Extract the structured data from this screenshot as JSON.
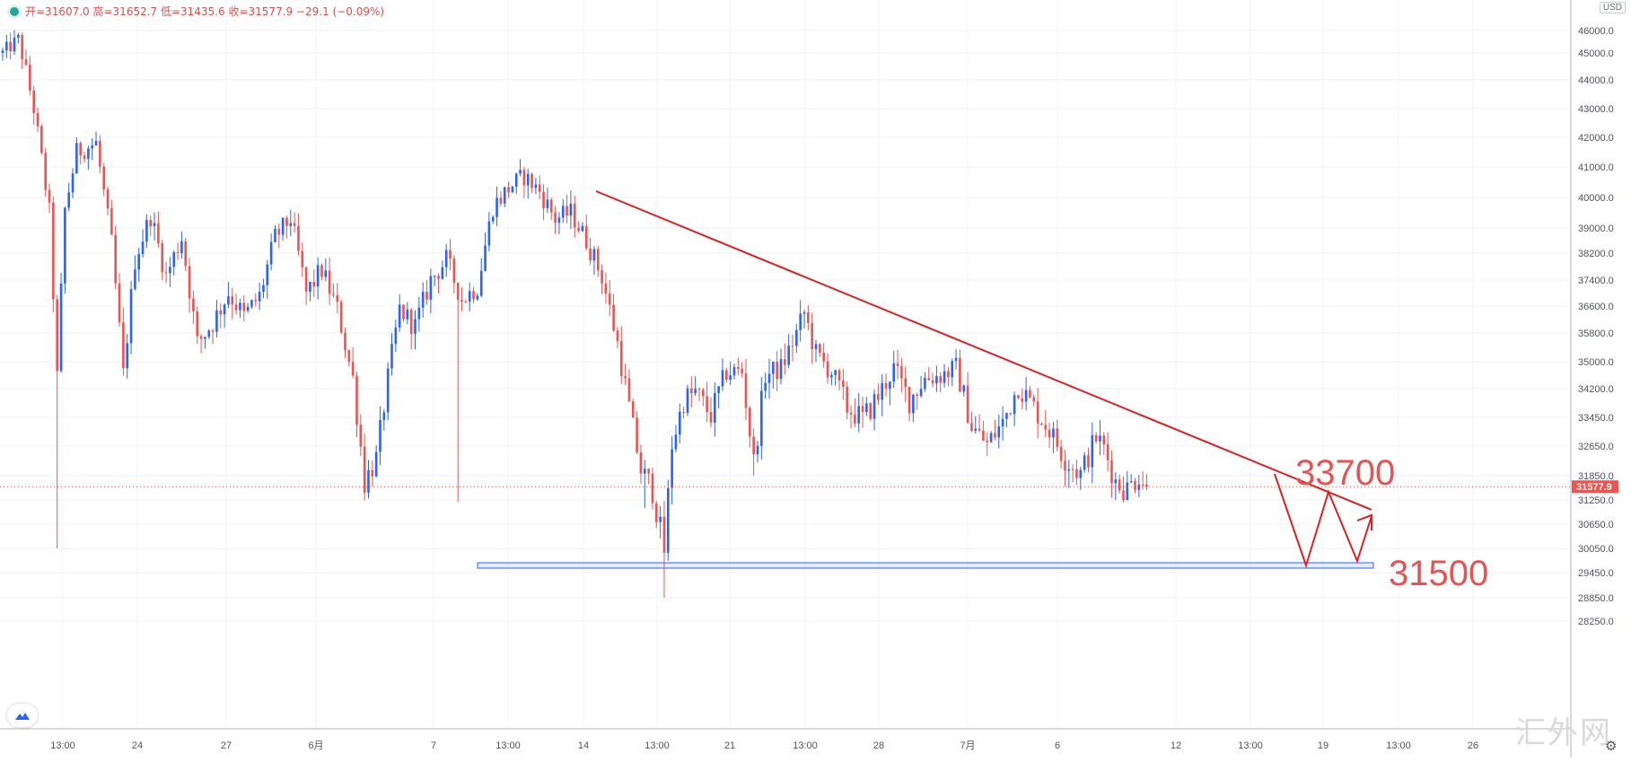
{
  "ohlc": {
    "text": "开=31607.0 高=31652.7 低=31435.6 收=31577.9 −29.1 (−0.09%)"
  },
  "currency": "USD",
  "watermark": "汇外网",
  "colors": {
    "up": "#2962ff",
    "down": "#ef5350",
    "trendline": "#e02020",
    "annotation": "#e55353",
    "grid": "#f0f3fa",
    "axis_text": "#50535e"
  },
  "chart_data": {
    "type": "candlestick",
    "ylim": [
      28200,
      47300
    ],
    "y_ticks": [
      "46000.0",
      "45000.0",
      "44000.0",
      "43000.0",
      "42000.0",
      "41000.0",
      "40000.0",
      "39000.0",
      "38200.0",
      "37400.0",
      "36600.0",
      "35800.0",
      "35000.0",
      "34200.0",
      "33450.0",
      "32650.0",
      "31850.0",
      "31250.0",
      "30650.0",
      "30050.0",
      "29450.0",
      "28850.0",
      "28250.0"
    ],
    "x_ticks": [
      "13:00",
      "24",
      "27",
      "6月",
      "7",
      "13:00",
      "14",
      "13:00",
      "21",
      "13:00",
      "28",
      "7月",
      "6",
      "12",
      "13:00",
      "19",
      "13:00",
      "26"
    ],
    "last_price": "31577.9",
    "annotations": [
      "33700",
      "31500"
    ],
    "trend": [
      {
        "i": 0,
        "v": 45000
      },
      {
        "i": 4,
        "v": 45600
      },
      {
        "i": 8,
        "v": 43000
      },
      {
        "i": 12,
        "v": 39500
      },
      {
        "i": 14,
        "v": 34500
      },
      {
        "i": 16,
        "v": 39600
      },
      {
        "i": 19,
        "v": 41500
      },
      {
        "i": 24,
        "v": 41800
      },
      {
        "i": 28,
        "v": 38500
      },
      {
        "i": 31,
        "v": 34600
      },
      {
        "i": 34,
        "v": 38000
      },
      {
        "i": 38,
        "v": 39400
      },
      {
        "i": 42,
        "v": 37500
      },
      {
        "i": 46,
        "v": 38700
      },
      {
        "i": 50,
        "v": 35500
      },
      {
        "i": 54,
        "v": 36100
      },
      {
        "i": 58,
        "v": 37000
      },
      {
        "i": 62,
        "v": 36300
      },
      {
        "i": 66,
        "v": 36900
      },
      {
        "i": 70,
        "v": 38700
      },
      {
        "i": 74,
        "v": 39300
      },
      {
        "i": 78,
        "v": 37000
      },
      {
        "i": 82,
        "v": 37700
      },
      {
        "i": 86,
        "v": 36500
      },
      {
        "i": 90,
        "v": 34500
      },
      {
        "i": 93,
        "v": 31700
      },
      {
        "i": 96,
        "v": 32300
      },
      {
        "i": 99,
        "v": 34500
      },
      {
        "i": 102,
        "v": 36500
      },
      {
        "i": 106,
        "v": 36000
      },
      {
        "i": 110,
        "v": 37400
      },
      {
        "i": 114,
        "v": 38000
      },
      {
        "i": 118,
        "v": 36800
      },
      {
        "i": 122,
        "v": 37200
      },
      {
        "i": 126,
        "v": 39700
      },
      {
        "i": 130,
        "v": 40300
      },
      {
        "i": 134,
        "v": 40700
      },
      {
        "i": 138,
        "v": 40200
      },
      {
        "i": 142,
        "v": 39300
      },
      {
        "i": 146,
        "v": 39500
      },
      {
        "i": 150,
        "v": 38600
      },
      {
        "i": 154,
        "v": 37500
      },
      {
        "i": 158,
        "v": 35500
      },
      {
        "i": 161,
        "v": 33700
      },
      {
        "i": 164,
        "v": 32000
      },
      {
        "i": 167,
        "v": 31500
      },
      {
        "i": 170,
        "v": 30000
      },
      {
        "i": 172,
        "v": 32700
      },
      {
        "i": 175,
        "v": 33900
      },
      {
        "i": 178,
        "v": 34100
      },
      {
        "i": 182,
        "v": 33500
      },
      {
        "i": 186,
        "v": 34700
      },
      {
        "i": 190,
        "v": 34700
      },
      {
        "i": 193,
        "v": 32200
      },
      {
        "i": 196,
        "v": 34600
      },
      {
        "i": 200,
        "v": 34800
      },
      {
        "i": 204,
        "v": 35800
      },
      {
        "i": 206,
        "v": 36400
      },
      {
        "i": 209,
        "v": 35200
      },
      {
        "i": 213,
        "v": 34700
      },
      {
        "i": 217,
        "v": 33700
      },
      {
        "i": 221,
        "v": 33400
      },
      {
        "i": 225,
        "v": 34000
      },
      {
        "i": 229,
        "v": 34800
      },
      {
        "i": 233,
        "v": 33900
      },
      {
        "i": 237,
        "v": 34500
      },
      {
        "i": 241,
        "v": 34600
      },
      {
        "i": 245,
        "v": 34800
      },
      {
        "i": 249,
        "v": 33200
      },
      {
        "i": 253,
        "v": 32700
      },
      {
        "i": 257,
        "v": 33300
      },
      {
        "i": 261,
        "v": 34300
      },
      {
        "i": 265,
        "v": 33700
      },
      {
        "i": 269,
        "v": 33100
      },
      {
        "i": 273,
        "v": 32300
      },
      {
        "i": 277,
        "v": 31900
      },
      {
        "i": 281,
        "v": 32900
      },
      {
        "i": 283,
        "v": 32600
      },
      {
        "i": 286,
        "v": 31700
      },
      {
        "i": 289,
        "v": 31500
      },
      {
        "i": 292,
        "v": 31900
      },
      {
        "i": 294,
        "v": 31580
      }
    ],
    "x_axis_range_index": [
      0,
      403
    ]
  }
}
